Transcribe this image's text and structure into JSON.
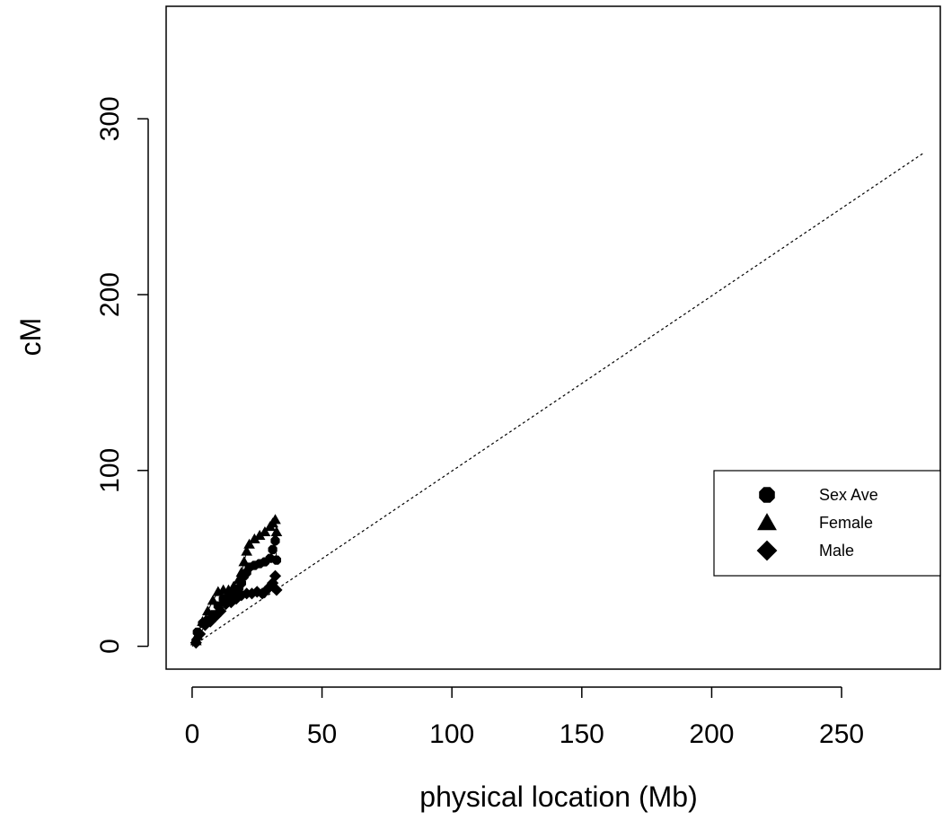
{
  "chart_data": {
    "type": "scatter",
    "xlabel": "physical location (Mb)",
    "ylabel": "cM",
    "xlim": [
      -10,
      288
    ],
    "ylim": [
      -13,
      364
    ],
    "x_ticks": [
      0,
      50,
      100,
      150,
      200,
      250
    ],
    "y_ticks": [
      0,
      100,
      200,
      300
    ],
    "grid": false,
    "legend_placement": "right",
    "reference_line": {
      "x": [
        0,
        282
      ],
      "y": [
        0,
        281
      ],
      "style": "dotted"
    },
    "series": [
      {
        "name": "Sex Ave",
        "marker": "octagon",
        "x": [
          1.5,
          2,
          4,
          6,
          8,
          10,
          12,
          14,
          16,
          18,
          19,
          20,
          21,
          22,
          24,
          26,
          28,
          30,
          31,
          32,
          32.5
        ],
        "y": [
          3,
          8,
          13,
          15,
          18,
          23,
          27,
          28,
          30,
          33,
          36,
          40,
          42,
          45,
          46,
          47,
          48,
          50,
          55,
          60,
          49
        ]
      },
      {
        "name": "Female",
        "marker": "triangle",
        "x": [
          1.5,
          2,
          4,
          6,
          8,
          10,
          12,
          14,
          16,
          18,
          19,
          20,
          21,
          22,
          24,
          26,
          28,
          30,
          31,
          32,
          32.5
        ],
        "y": [
          3,
          6,
          14,
          20,
          26,
          31,
          32,
          32,
          34,
          38,
          42,
          48,
          54,
          58,
          61,
          63,
          65,
          68,
          70,
          72,
          65
        ]
      },
      {
        "name": "Male",
        "marker": "diamond",
        "x": [
          1.5,
          3,
          5,
          7,
          9,
          11,
          13,
          15,
          17,
          19,
          21,
          23,
          25,
          27,
          28,
          30,
          31,
          32,
          32.5
        ],
        "y": [
          2,
          7,
          12,
          14,
          17,
          20,
          24,
          25,
          27,
          29,
          30,
          30,
          31,
          30,
          31,
          34,
          36,
          40,
          32
        ]
      }
    ],
    "legend": [
      {
        "marker": "octagon",
        "label": "Sex Ave"
      },
      {
        "marker": "triangle",
        "label": "Female"
      },
      {
        "marker": "diamond",
        "label": "Male"
      }
    ]
  }
}
